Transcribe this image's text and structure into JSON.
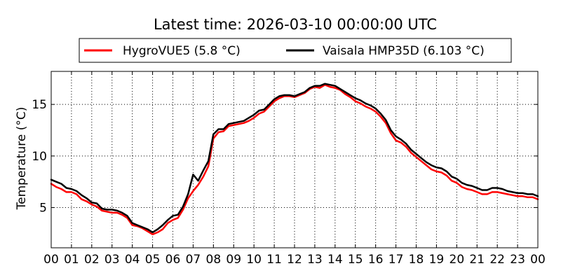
{
  "chart_data": {
    "type": "line",
    "title": "Latest time: 2026-03-10 00:00:00 UTC",
    "xlabel": "",
    "ylabel": "Temperature (°C)",
    "xlim": [
      0,
      24
    ],
    "ylim": [
      1.1,
      18.2
    ],
    "x_ticks": [
      "00",
      "01",
      "02",
      "03",
      "04",
      "05",
      "06",
      "07",
      "08",
      "09",
      "10",
      "11",
      "12",
      "13",
      "14",
      "15",
      "16",
      "17",
      "18",
      "19",
      "20",
      "21",
      "22",
      "23",
      "00"
    ],
    "y_ticks": [
      5,
      10,
      15
    ],
    "grid": true,
    "legend_position": "top",
    "x_hours": [
      0,
      0.25,
      0.5,
      0.75,
      1,
      1.25,
      1.5,
      1.75,
      2,
      2.25,
      2.5,
      2.75,
      3,
      3.25,
      3.5,
      3.75,
      4,
      4.25,
      4.5,
      4.75,
      5,
      5.25,
      5.5,
      5.75,
      6,
      6.25,
      6.5,
      6.75,
      7,
      7.25,
      7.5,
      7.75,
      8,
      8.25,
      8.5,
      8.75,
      9,
      9.25,
      9.5,
      9.75,
      10,
      10.25,
      10.5,
      10.75,
      11,
      11.25,
      11.5,
      11.75,
      12,
      12.25,
      12.5,
      12.75,
      13,
      13.25,
      13.5,
      13.75,
      14,
      14.25,
      14.5,
      14.75,
      15,
      15.25,
      15.5,
      15.75,
      16,
      16.25,
      16.5,
      16.75,
      17,
      17.25,
      17.5,
      17.75,
      18,
      18.25,
      18.5,
      18.75,
      19,
      19.25,
      19.5,
      19.75,
      20,
      20.25,
      20.5,
      20.75,
      21,
      21.25,
      21.5,
      21.75,
      22,
      22.25,
      22.5,
      22.75,
      23,
      23.25,
      23.5,
      23.75,
      24
    ],
    "series": [
      {
        "name": "HygroVUE5 (5.8 °C)",
        "color": "#ff0000",
        "values": [
          7.3,
          7.0,
          6.8,
          6.5,
          6.5,
          6.3,
          5.8,
          5.6,
          5.3,
          5.1,
          4.7,
          4.6,
          4.5,
          4.5,
          4.3,
          4.0,
          3.3,
          3.2,
          3.0,
          2.7,
          2.4,
          2.6,
          2.9,
          3.5,
          3.8,
          4.0,
          4.8,
          5.9,
          6.6,
          7.2,
          8.0,
          9.0,
          11.7,
          12.3,
          12.4,
          12.9,
          13.0,
          13.1,
          13.2,
          13.4,
          13.7,
          14.1,
          14.3,
          14.8,
          15.3,
          15.6,
          15.8,
          15.8,
          15.7,
          15.9,
          16.1,
          16.5,
          16.7,
          16.6,
          16.9,
          16.7,
          16.6,
          16.4,
          16.0,
          15.7,
          15.3,
          15.1,
          14.8,
          14.6,
          14.3,
          13.8,
          13.2,
          12.2,
          11.5,
          11.3,
          10.9,
          10.3,
          9.9,
          9.5,
          9.1,
          8.7,
          8.5,
          8.4,
          8.1,
          7.6,
          7.4,
          7.0,
          6.8,
          6.7,
          6.5,
          6.3,
          6.3,
          6.5,
          6.5,
          6.4,
          6.3,
          6.2,
          6.1,
          6.1,
          6.0,
          6.0,
          5.8
        ]
      },
      {
        "name": "Vaisala HMP35D (6.103 °C)",
        "color": "#000000",
        "values": [
          7.7,
          7.5,
          7.3,
          6.9,
          6.8,
          6.6,
          6.2,
          5.9,
          5.5,
          5.4,
          4.9,
          4.8,
          4.8,
          4.7,
          4.5,
          4.2,
          3.5,
          3.3,
          3.1,
          2.9,
          2.6,
          2.9,
          3.3,
          3.8,
          4.2,
          4.3,
          5.1,
          6.3,
          8.2,
          7.6,
          8.6,
          9.5,
          12.1,
          12.6,
          12.6,
          13.1,
          13.2,
          13.3,
          13.4,
          13.7,
          14.0,
          14.4,
          14.5,
          15.0,
          15.5,
          15.8,
          15.9,
          15.9,
          15.8,
          16.0,
          16.2,
          16.6,
          16.8,
          16.8,
          17.0,
          16.9,
          16.8,
          16.5,
          16.2,
          15.9,
          15.6,
          15.4,
          15.1,
          14.9,
          14.6,
          14.1,
          13.5,
          12.5,
          11.9,
          11.6,
          11.2,
          10.6,
          10.2,
          9.8,
          9.4,
          9.1,
          8.9,
          8.8,
          8.5,
          8.0,
          7.8,
          7.4,
          7.2,
          7.1,
          6.9,
          6.7,
          6.7,
          6.9,
          6.9,
          6.8,
          6.6,
          6.5,
          6.4,
          6.4,
          6.3,
          6.3,
          6.1
        ]
      }
    ]
  }
}
